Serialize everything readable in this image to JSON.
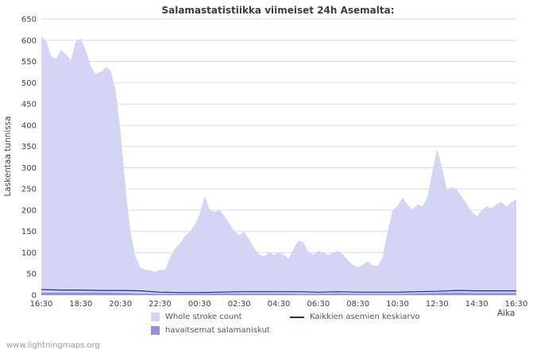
{
  "title": "Salamastatistiikka viimeiset 24h Asemalta:",
  "footer": "www.lightningmaps.org",
  "axes": {
    "y_label": "Laskentaa tunnissa",
    "x_label": "Aika"
  },
  "legend": {
    "items": [
      {
        "label": "Whole stroke count"
      },
      {
        "label": "Kaikkien asemien keskiarvo"
      },
      {
        "label": "havaitsemat salamaniskut"
      }
    ]
  },
  "chart_data": {
    "type": "area",
    "title": "Salamastatistiikka viimeiset 24h Asemalta:",
    "ylabel": "Laskentaa tunnissa",
    "xlabel": "Aika",
    "ylim": [
      0,
      650
    ],
    "y_ticks": [
      0,
      50,
      100,
      150,
      200,
      250,
      300,
      350,
      400,
      450,
      500,
      550,
      600,
      650
    ],
    "x_tick_labels": [
      "16:30",
      "18:30",
      "20:30",
      "22:30",
      "00:30",
      "02:30",
      "04:30",
      "06:30",
      "08:30",
      "10:30",
      "12:30",
      "14:30",
      "16:30"
    ],
    "x_span_hours": 24,
    "sample_interval_minutes": 15,
    "grid": true,
    "legend_position": "bottom",
    "colors": {
      "grid": "#dcdcdc",
      "axis_text": "#404040",
      "background": "#ffffff"
    },
    "series": [
      {
        "name": "Whole stroke count",
        "color": "#d4d4f4",
        "values": [
          610,
          598,
          562,
          556,
          578,
          566,
          554,
          598,
          604,
          576,
          540,
          521,
          526,
          536,
          530,
          484,
          386,
          255,
          152,
          92,
          66,
          60,
          58,
          55,
          60,
          58,
          88,
          110,
          121,
          139,
          150,
          164,
          189,
          234,
          202,
          196,
          200,
          186,
          170,
          151,
          141,
          150,
          131,
          111,
          96,
          91,
          100,
          95,
          100,
          96,
          86,
          109,
          129,
          124,
          101,
          95,
          104,
          100,
          95,
          100,
          104,
          96,
          81,
          71,
          66,
          72,
          80,
          70,
          68,
          90,
          150,
          200,
          210,
          229,
          214,
          201,
          214,
          209,
          229,
          289,
          344,
          299,
          246,
          254,
          249,
          231,
          214,
          196,
          186,
          199,
          209,
          204,
          214,
          219,
          209,
          219,
          226
        ]
      },
      {
        "name": "havaitsemat salamaniskut",
        "color": "#9393d9",
        "values": [
          6,
          6,
          6,
          6,
          5,
          4,
          3,
          3,
          3,
          4,
          4,
          4,
          4,
          3,
          3,
          4,
          3,
          3,
          3,
          4,
          5,
          6,
          5,
          5,
          5
        ]
      },
      {
        "name": "Kaikkien asemien keskiarvo",
        "color": "#1a2f7e",
        "type": "line",
        "values": [
          13,
          12,
          12,
          11,
          11,
          10,
          7,
          6,
          6,
          7,
          8,
          8,
          8,
          8,
          7,
          8,
          7,
          7,
          7,
          8,
          9,
          11,
          10,
          10,
          10
        ]
      }
    ]
  }
}
